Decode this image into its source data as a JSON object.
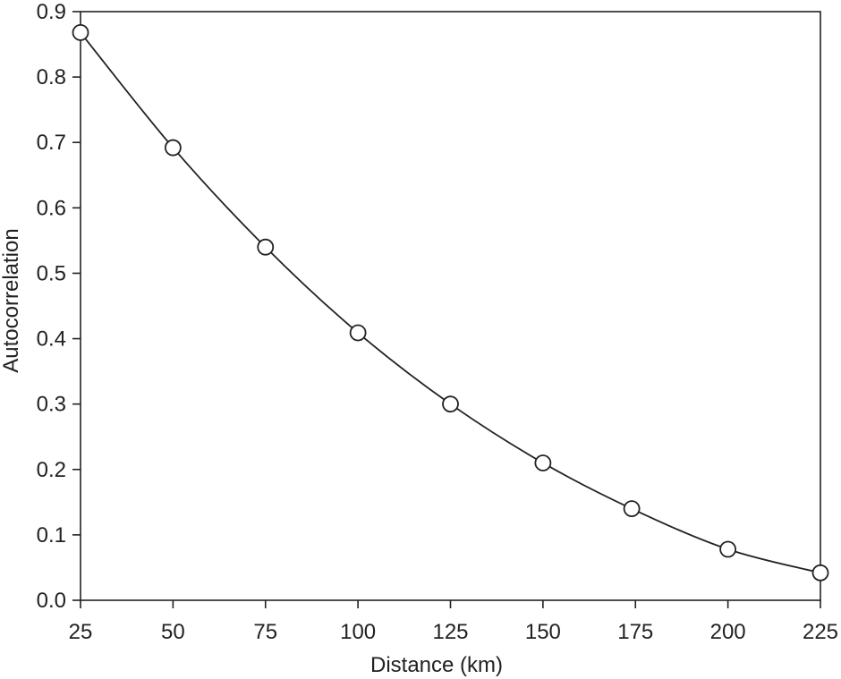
{
  "chart_data": {
    "type": "scatter",
    "title": "",
    "xlabel": "Distance (km)",
    "ylabel": "Autocorrelation",
    "xlim": [
      25,
      225
    ],
    "ylim": [
      0.0,
      0.9
    ],
    "xticks": [
      25,
      50,
      75,
      100,
      125,
      150,
      175,
      200,
      225
    ],
    "xtick_labels": [
      "25",
      "50",
      "75",
      "100",
      "125",
      "150",
      "175",
      "200",
      "225"
    ],
    "yticks": [
      0.0,
      0.1,
      0.2,
      0.3,
      0.4,
      0.5,
      0.6,
      0.7,
      0.8,
      0.9
    ],
    "ytick_labels": [
      "0.0",
      "0.1",
      "0.2",
      "0.3",
      "0.4",
      "0.5",
      "0.6",
      "0.7",
      "0.8",
      "0.9"
    ],
    "grid": false,
    "series": [
      {
        "marker": "open-circle",
        "fit_line": "smooth-curve",
        "x": [
          25,
          50,
          75,
          100,
          125,
          150,
          174,
          200,
          225
        ],
        "y": [
          0.868,
          0.692,
          0.54,
          0.409,
          0.3,
          0.21,
          0.14,
          0.078,
          0.042
        ]
      }
    ]
  }
}
